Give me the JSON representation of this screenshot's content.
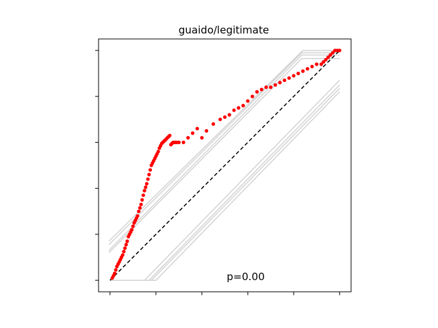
{
  "chart_data": {
    "type": "scatter",
    "title": "guaido/legitimate",
    "xlabel": "",
    "ylabel": "",
    "xlim": [
      -0.05,
      1.05
    ],
    "ylim": [
      -0.05,
      1.05
    ],
    "x_ticks": [
      0,
      0.2,
      0.4,
      0.6,
      0.8,
      1.0
    ],
    "y_ticks": [
      0,
      0.2,
      0.4,
      0.6,
      0.8,
      1.0
    ],
    "tick_labels_visible": false,
    "grid": false,
    "legend": "none",
    "annotation": "p=0.00",
    "reference_line": {
      "style": "dashed",
      "color": "#000000",
      "from": [
        0,
        0
      ],
      "to": [
        1,
        1
      ]
    },
    "envelope_color": "#d3d3d3",
    "point_color": "#ff0000",
    "envelope_bands": [
      {
        "upper": [
          [
            -0.005,
            0.17
          ],
          [
            0.84,
            1.0
          ],
          [
            1.0,
            1.0
          ]
        ],
        "lower": [
          [
            0.0,
            0.0
          ],
          [
            0.15,
            0.0
          ],
          [
            1.0,
            0.87
          ]
        ]
      },
      {
        "upper": [
          [
            -0.005,
            0.155
          ],
          [
            0.835,
            0.99
          ],
          [
            1.0,
            0.99
          ]
        ],
        "lower": [
          [
            0.0,
            0.0
          ],
          [
            0.17,
            0.0
          ],
          [
            1.0,
            0.85
          ]
        ]
      },
      {
        "upper": [
          [
            -0.005,
            0.13
          ],
          [
            0.835,
            0.98
          ],
          [
            1.0,
            0.98
          ]
        ],
        "lower": [
          [
            0.0,
            0.0
          ],
          [
            0.18,
            0.0
          ],
          [
            1.0,
            0.835
          ]
        ]
      },
      {
        "upper": [
          [
            -0.005,
            0.12
          ],
          [
            0.835,
            0.965
          ],
          [
            1.0,
            0.965
          ]
        ],
        "lower": [
          [
            0.0,
            0.0
          ],
          [
            0.2,
            0.0
          ],
          [
            1.0,
            0.82
          ]
        ]
      }
    ],
    "series": [
      {
        "x": [
          0.01,
          0.015,
          0.02,
          0.025,
          0.03,
          0.035,
          0.04,
          0.045,
          0.05,
          0.055,
          0.06,
          0.065,
          0.07,
          0.075,
          0.08,
          0.085,
          0.09,
          0.095,
          0.1,
          0.105,
          0.11,
          0.115,
          0.12,
          0.125,
          0.13,
          0.135,
          0.14,
          0.145,
          0.15,
          0.155,
          0.16,
          0.165,
          0.17,
          0.175,
          0.18,
          0.185,
          0.19,
          0.195,
          0.2,
          0.205,
          0.21,
          0.215,
          0.22,
          0.225,
          0.23,
          0.235,
          0.24,
          0.245,
          0.25,
          0.255,
          0.26,
          0.265,
          0.27,
          0.275,
          0.28,
          0.285,
          0.29,
          0.3,
          0.32,
          0.34,
          0.36,
          0.38,
          0.4,
          0.42,
          0.45,
          0.48,
          0.5,
          0.52,
          0.54,
          0.56,
          0.58,
          0.6,
          0.62,
          0.64,
          0.66,
          0.68,
          0.7,
          0.72,
          0.74,
          0.76,
          0.78,
          0.8,
          0.82,
          0.84,
          0.86,
          0.88,
          0.9,
          0.92,
          0.93,
          0.94,
          0.95,
          0.96,
          0.97,
          0.98,
          0.99,
          1.0
        ],
        "y": [
          0.01,
          0.02,
          0.03,
          0.045,
          0.06,
          0.07,
          0.08,
          0.09,
          0.1,
          0.11,
          0.125,
          0.14,
          0.155,
          0.17,
          0.19,
          0.2,
          0.21,
          0.22,
          0.235,
          0.25,
          0.26,
          0.27,
          0.28,
          0.3,
          0.315,
          0.33,
          0.35,
          0.37,
          0.39,
          0.405,
          0.42,
          0.44,
          0.46,
          0.48,
          0.5,
          0.51,
          0.52,
          0.53,
          0.54,
          0.55,
          0.56,
          0.575,
          0.585,
          0.595,
          0.6,
          0.605,
          0.61,
          0.615,
          0.62,
          0.625,
          0.63,
          0.59,
          0.595,
          0.6,
          0.6,
          0.6,
          0.6,
          0.6,
          0.6,
          0.62,
          0.64,
          0.66,
          0.62,
          0.65,
          0.68,
          0.7,
          0.71,
          0.72,
          0.74,
          0.75,
          0.76,
          0.78,
          0.8,
          0.82,
          0.83,
          0.84,
          0.84,
          0.85,
          0.86,
          0.87,
          0.88,
          0.89,
          0.9,
          0.91,
          0.92,
          0.93,
          0.94,
          0.94,
          0.95,
          0.96,
          0.97,
          0.98,
          0.99,
          1.0,
          1.0,
          1.0
        ]
      }
    ]
  }
}
